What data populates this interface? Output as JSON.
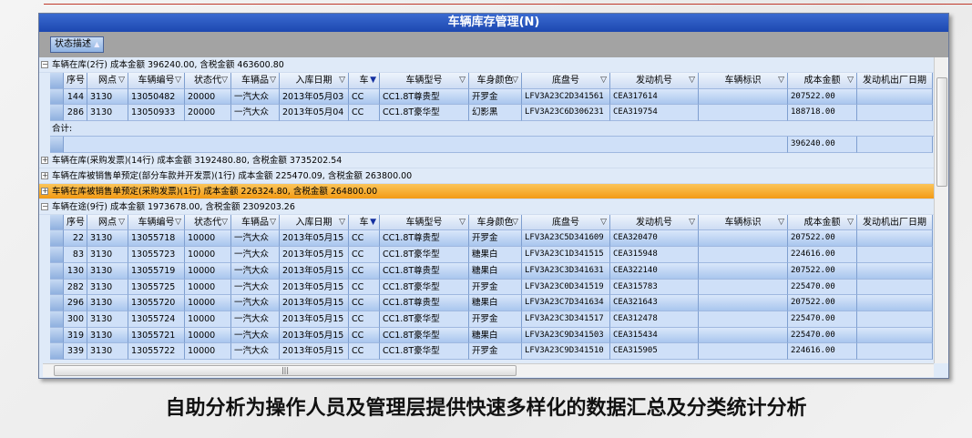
{
  "window": {
    "title": "车辆库存管理(N)"
  },
  "toolbar": {
    "state_button": "状态描述"
  },
  "columns": [
    "序号",
    "网点",
    "车辆编号",
    "状态代",
    "车辆品",
    "入库日期",
    "车",
    "车辆型号",
    "车身颜色",
    "底盘号",
    "发动机号",
    "车辆标识",
    "成本金额",
    "发动机出厂日期"
  ],
  "active_filter_column": "车",
  "groups": [
    {
      "label": "车辆在库(2行) 成本金额 396240.00, 含税金额 463600.80",
      "expanded": true,
      "rows": [
        [
          "144",
          "3130",
          "13050482",
          "20000",
          "一汽大众",
          "2013年05月03",
          "CC",
          "CC1.8T尊贵型",
          "开罗金",
          "LFV3A23C2D341561",
          "CEA317614",
          "",
          "207522.00",
          ""
        ],
        [
          "286",
          "3130",
          "13050933",
          "20000",
          "一汽大众",
          "2013年05月04",
          "CC",
          "CC1.8T豪华型",
          "幻影黑",
          "LFV3A23C6D306231",
          "CEA319754",
          "",
          "188718.00",
          ""
        ]
      ],
      "total_label": "合计:",
      "total": "396240.00"
    },
    {
      "label": "车辆在库(采购发票)(14行) 成本金额 3192480.80, 含税金额 3735202.54",
      "expanded": false
    },
    {
      "label": "车辆在库被销售单预定(部分车款并开发票)(1行) 成本金额 225470.09, 含税金额 263800.00",
      "expanded": false
    },
    {
      "label": "车辆在库被销售单预定(采购发票)(1行) 成本金额 226324.80, 含税金额 264800.00",
      "expanded": false,
      "selected": true
    },
    {
      "label": "车辆在途(9行) 成本金额 1973678.00, 含税金额 2309203.26",
      "expanded": true,
      "rows": [
        [
          "22",
          "3130",
          "13055718",
          "10000",
          "一汽大众",
          "2013年05月15",
          "CC",
          "CC1.8T尊贵型",
          "开罗金",
          "LFV3A23C5D341609",
          "CEA320470",
          "",
          "207522.00",
          ""
        ],
        [
          "83",
          "3130",
          "13055723",
          "10000",
          "一汽大众",
          "2013年05月15",
          "CC",
          "CC1.8T豪华型",
          "糖果白",
          "LFV3A23C1D341515",
          "CEA315948",
          "",
          "224616.00",
          ""
        ],
        [
          "130",
          "3130",
          "13055719",
          "10000",
          "一汽大众",
          "2013年05月15",
          "CC",
          "CC1.8T尊贵型",
          "糖果白",
          "LFV3A23C3D341631",
          "CEA322140",
          "",
          "207522.00",
          ""
        ],
        [
          "282",
          "3130",
          "13055725",
          "10000",
          "一汽大众",
          "2013年05月15",
          "CC",
          "CC1.8T豪华型",
          "开罗金",
          "LFV3A23C0D341519",
          "CEA315783",
          "",
          "225470.00",
          ""
        ],
        [
          "296",
          "3130",
          "13055720",
          "10000",
          "一汽大众",
          "2013年05月15",
          "CC",
          "CC1.8T尊贵型",
          "糖果白",
          "LFV3A23C7D341634",
          "CEA321643",
          "",
          "207522.00",
          ""
        ],
        [
          "300",
          "3130",
          "13055724",
          "10000",
          "一汽大众",
          "2013年05月15",
          "CC",
          "CC1.8T豪华型",
          "开罗金",
          "LFV3A23C3D341517",
          "CEA312478",
          "",
          "225470.00",
          ""
        ],
        [
          "319",
          "3130",
          "13055721",
          "10000",
          "一汽大众",
          "2013年05月15",
          "CC",
          "CC1.8T豪华型",
          "糖果白",
          "LFV3A23C9D341503",
          "CEA315434",
          "",
          "225470.00",
          ""
        ],
        [
          "339",
          "3130",
          "13055722",
          "10000",
          "一汽大众",
          "2013年05月15",
          "CC",
          "CC1.8T豪华型",
          "开罗金",
          "LFV3A23C9D341510",
          "CEA315905",
          "",
          "224616.00",
          ""
        ]
      ]
    }
  ],
  "caption": "自助分析为操作人员及管理层提供快速多样化的数据汇总及分类统计分析"
}
